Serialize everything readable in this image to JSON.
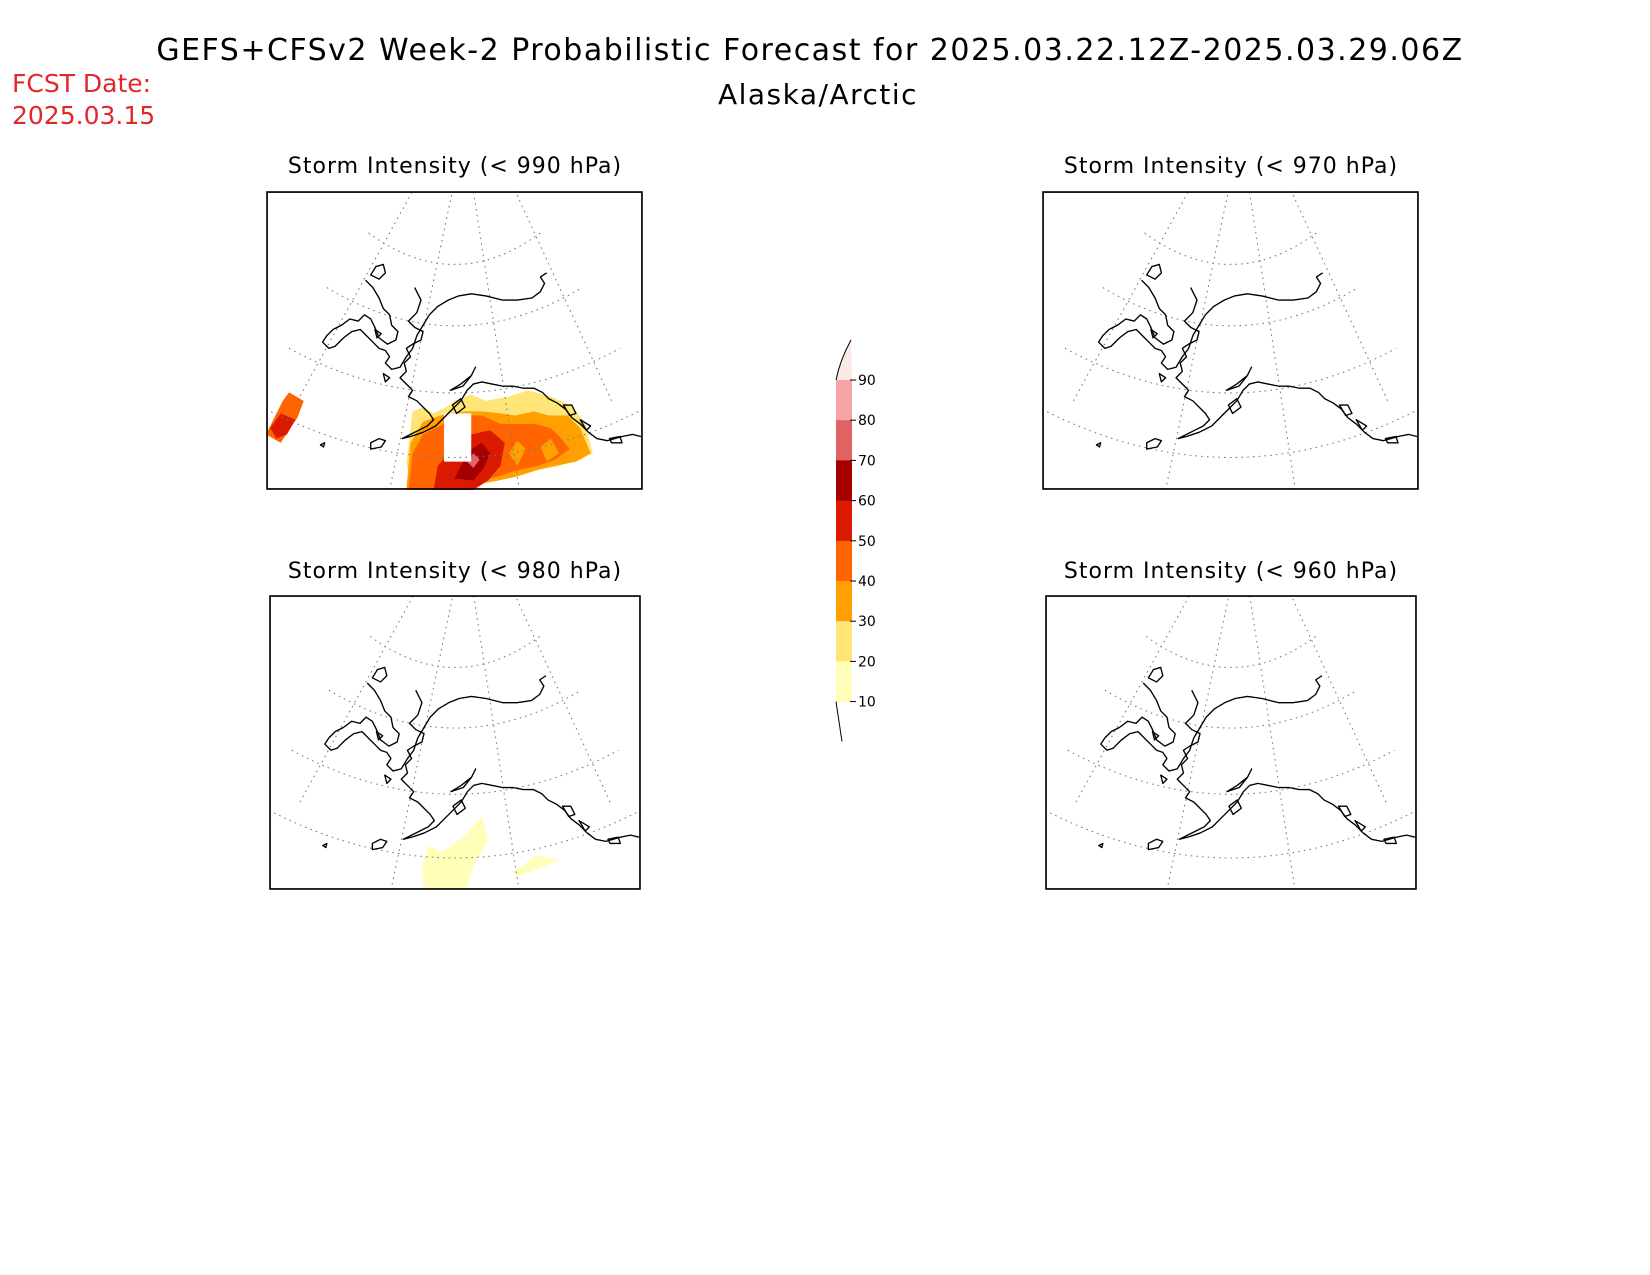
{
  "header": {
    "title": "GEFS+CFSv2 Week-2 Probabilistic Forecast for 2025.03.22.12Z-2025.03.29.06Z",
    "subtitle": "Alaska/Arctic",
    "fcst_label": "FCST Date:",
    "fcst_date": "2025.03.15"
  },
  "panels": [
    {
      "id": "p990",
      "title": "Storm Intensity (< 990 hPa)"
    },
    {
      "id": "p970",
      "title": "Storm Intensity (< 970 hPa)"
    },
    {
      "id": "p980",
      "title": "Storm Intensity (< 980 hPa)"
    },
    {
      "id": "p960",
      "title": "Storm Intensity (< 960 hPa)"
    }
  ],
  "colorbar": {
    "ticks": [
      "90",
      "80",
      "70",
      "60",
      "50",
      "40",
      "30",
      "20",
      "10"
    ],
    "colors": [
      "#fde8e8",
      "#f4a4a4",
      "#e06464",
      "#a50000",
      "#d91a00",
      "#ff6400",
      "#ffa000",
      "#ffe478",
      "#ffffb9"
    ]
  },
  "legend_colors": {
    "10-20": "#ffffb9",
    "20-30": "#ffe478",
    "30-40": "#ffa000",
    "40-50": "#ff6400",
    "50-60": "#d91a00",
    "60-70": "#a50000",
    "70-80": "#e06464",
    "80-90": "#f4a4a4"
  }
}
